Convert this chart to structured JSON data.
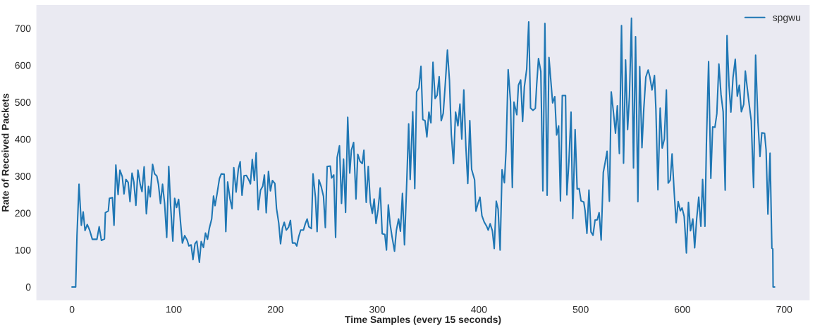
{
  "chart_data": {
    "type": "line",
    "xlabel": "Time Samples (every 15 seconds)",
    "ylabel": "Rate of Received Packets",
    "xlim": [
      -35,
      725
    ],
    "xticks": [
      0,
      100,
      200,
      300,
      400,
      500,
      600,
      700
    ],
    "ylim": [
      -36,
      763
    ],
    "yticks": [
      0,
      100,
      200,
      300,
      400,
      500,
      600,
      700
    ],
    "grid": false,
    "legend": "top right",
    "marker": "none",
    "line_style": "solid",
    "series": [
      {
        "name": "spgwu",
        "color": "#1f77b4",
        "x": [
          0,
          3.6,
          4.9,
          6.9,
          9.2,
          11,
          12.8,
          15,
          17.3,
          20,
          24.5,
          26.7,
          28.9,
          31.9,
          32.8,
          35.7,
          36.8,
          39.7,
          41.3,
          43.1,
          45.3,
          47.1,
          49.4,
          51.1,
          53,
          55.2,
          57,
          59,
          60.8,
          62.8,
          64.8,
          67.1,
          68.8,
          70.9,
          73.1,
          75.2,
          76.9,
          79.2,
          81.2,
          83.4,
          85,
          87,
          89,
          91,
          93.1,
          95.1,
          96.9,
          99.1,
          100.9,
          102.8,
          104.8,
          106.8,
          108.5,
          110.8,
          113.3,
          114.9,
          117.1,
          118.9,
          120.9,
          122.7,
          125.2,
          127,
          129.2,
          131.2,
          133.2,
          135,
          137.3,
          139.1,
          140.6,
          142.7,
          144.9,
          146.7,
          149.6,
          151.2,
          153,
          155.2,
          157.3,
          159,
          161.3,
          163.5,
          165.3,
          167.1,
          169.1,
          171.4,
          174.1,
          175.4,
          177.2,
          179.2,
          181,
          183,
          185.3,
          187.5,
          189.1,
          190.9,
          193.1,
          195,
          197,
          199.4,
          201,
          203.2,
          205,
          206.8,
          208.6,
          210.6,
          212.9,
          214.7,
          216.7,
          219.2,
          220.9,
          222.9,
          224.8,
          227.5,
          229.3,
          231.1,
          232.8,
          235.3,
          236.9,
          239.3,
          240.9,
          242.7,
          245,
          247.2,
          249,
          250.8,
          253.9,
          255.1,
          257.3,
          259.1,
          260.6,
          262.9,
          264.9,
          266.9,
          268.9,
          271,
          273,
          274.6,
          276.8,
          279.1,
          280.9,
          283.1,
          285.3,
          286.9,
          289.2,
          291.2,
          293.2,
          295.2,
          297,
          298.8,
          300.8,
          302.9,
          304.9,
          307.5,
          309.1,
          310.9,
          312.7,
          314.5,
          317,
          318.8,
          321,
          322.8,
          324.8,
          326.8,
          329.1,
          330.9,
          332.4,
          334.9,
          336.9,
          338.7,
          341,
          343,
          344.8,
          347,
          348.8,
          350.8,
          352.8,
          354.8,
          356.9,
          358.9,
          360.9,
          362.9,
          364.9,
          367,
          369,
          371,
          372.8,
          375,
          377,
          379.3,
          381.3,
          383.1,
          385.1,
          387.1,
          389,
          391,
          392.8,
          395.7,
          397,
          399.3,
          401,
          402.9,
          405.1,
          407.6,
          409.1,
          411,
          413.2,
          415,
          417,
          418.8,
          420.8,
          422.7,
          425,
          426.6,
          428.7,
          431,
          432.8,
          434.4,
          437.2,
          438.8,
          441,
          442.9,
          444.6,
          446.9,
          448.9,
          450.7,
          453.1,
          455.4,
          456.7,
          458.5,
          460.8,
          462.8,
          464.8,
          467,
          468.8,
          472.4,
          474.5,
          476.3,
          478.3,
          480.1,
          481.9,
          485.1,
          486.4,
          488.4,
          490.5,
          492.2,
          494.5,
          496.5,
          498.5,
          500.3,
          503,
          504.3,
          506.1,
          508.1,
          510.1,
          512.1,
          514.1,
          516.3,
          518.1,
          520.1,
          522.2,
          523.9,
          525.9,
          528.2,
          530,
          532,
          534.2,
          536,
          538,
          540.1,
          542.1,
          544.1,
          546.1,
          547.9,
          549.9,
          551.9,
          553.9,
          556.2,
          558,
          560.2,
          562,
          564,
          566.3,
          568,
          570.1,
          572.5,
          573.9,
          575.9,
          578.1,
          580.1,
          582.2,
          584.2,
          586,
          588,
          589.8,
          591.8,
          593.8,
          595.8,
          597.9,
          599.6,
          601.7,
          603.9,
          605.9,
          607.9,
          610.2,
          612,
          614,
          616,
          618.1,
          619.8,
          622.1,
          623.6,
          625.7,
          627.9,
          629.7,
          631.9,
          633.8,
          635.8,
          637.9,
          640,
          642,
          643.8,
          645.8,
          647.6,
          649.7,
          651.9,
          653.9,
          655.9,
          657.9,
          660.2,
          661.8,
          663.8,
          665.6,
          667.6,
          669.9,
          671.9,
          674.2,
          676.2,
          678,
          680.7,
          682.2,
          684,
          686.1,
          687.9,
          688.8,
          689.1,
          690.6
        ],
        "values": [
          0,
          0,
          139,
          278,
          167,
          203,
          153,
          169,
          154,
          129,
          129,
          163,
          126,
          130,
          201,
          206,
          240,
          242,
          167,
          330,
          250,
          316,
          299,
          252,
          291,
          283,
          231,
          308,
          284,
          221,
          316,
          277,
          258,
          325,
          198,
          272,
          244,
          332,
          306,
          300,
          277,
          226,
          278,
          227,
          134,
          326,
          221,
          124,
          240,
          215,
          237,
          171,
          119,
          139,
          126,
          111,
          114,
          74,
          117,
          124,
          67,
          123,
          107,
          146,
          129,
          159,
          184,
          246,
          220,
          254,
          293,
          306,
          305,
          150,
          284,
          240,
          212,
          323,
          257,
          319,
          339,
          248,
          301,
          302,
          288,
          279,
          345,
          288,
          363,
          209,
          262,
          273,
          303,
          201,
          313,
          260,
          288,
          280,
          213,
          173,
          117,
          159,
          175,
          154,
          162,
          180,
          119,
          119,
          111,
          137,
          154,
          154,
          171,
          184,
          163,
          158,
          306,
          242,
          150,
          290,
          271,
          245,
          161,
          326,
          327,
          295,
          303,
          134,
          350,
          382,
          226,
          346,
          202,
          459,
          308,
          370,
          391,
          238,
          359,
          340,
          334,
          370,
          229,
          326,
          229,
          199,
          238,
          172,
          209,
          268,
          144,
          142,
          100,
          222,
          170,
          137,
          97,
          153,
          184,
          151,
          253,
          114,
          290,
          441,
          291,
          474,
          266,
          528,
          539,
          597,
          453,
          450,
          406,
          473,
          444,
          608,
          510,
          519,
          569,
          450,
          470,
          554,
          641,
          559,
          413,
          334,
          473,
          436,
          495,
          400,
          533,
          381,
          280,
          450,
          318,
          290,
          205,
          229,
          243,
          193,
          176,
          164,
          154,
          171,
          152,
          104,
          232,
          211,
          100,
          317,
          282,
          368,
          588,
          502,
          269,
          500,
          466,
          546,
          560,
          448,
          541,
          589,
          717,
          484,
          478,
          483,
          546,
          618,
          583,
          260,
          713,
          248,
          621,
          498,
          515,
          411,
          436,
          233,
          518,
          518,
          249,
          339,
          473,
          185,
          426,
          265,
          266,
          233,
          230,
          206,
          145,
          262,
          149,
          140,
          181,
          182,
          201,
          127,
          310,
          335,
          367,
          232,
          528,
          477,
          416,
          490,
          361,
          707,
          335,
          614,
          426,
          516,
          727,
          322,
          677,
          231,
          596,
          377,
          482,
          568,
          587,
          568,
          533,
          572,
          481,
          263,
          484,
          376,
          400,
          533,
          281,
          289,
          360,
          260,
          174,
          231,
          206,
          214,
          191,
          92,
          229,
          152,
          184,
          106,
          185,
          243,
          164,
          291,
          164,
          395,
          610,
          294,
          433,
          432,
          469,
          603,
          521,
          474,
          262,
          680,
          544,
          473,
          567,
          616,
          516,
          546,
          474,
          494,
          584,
          536,
          494,
          450,
          269,
          627,
          446,
          353,
          417,
          416,
          371,
          197,
          362,
          105,
          103,
          0,
          0
        ]
      }
    ]
  }
}
